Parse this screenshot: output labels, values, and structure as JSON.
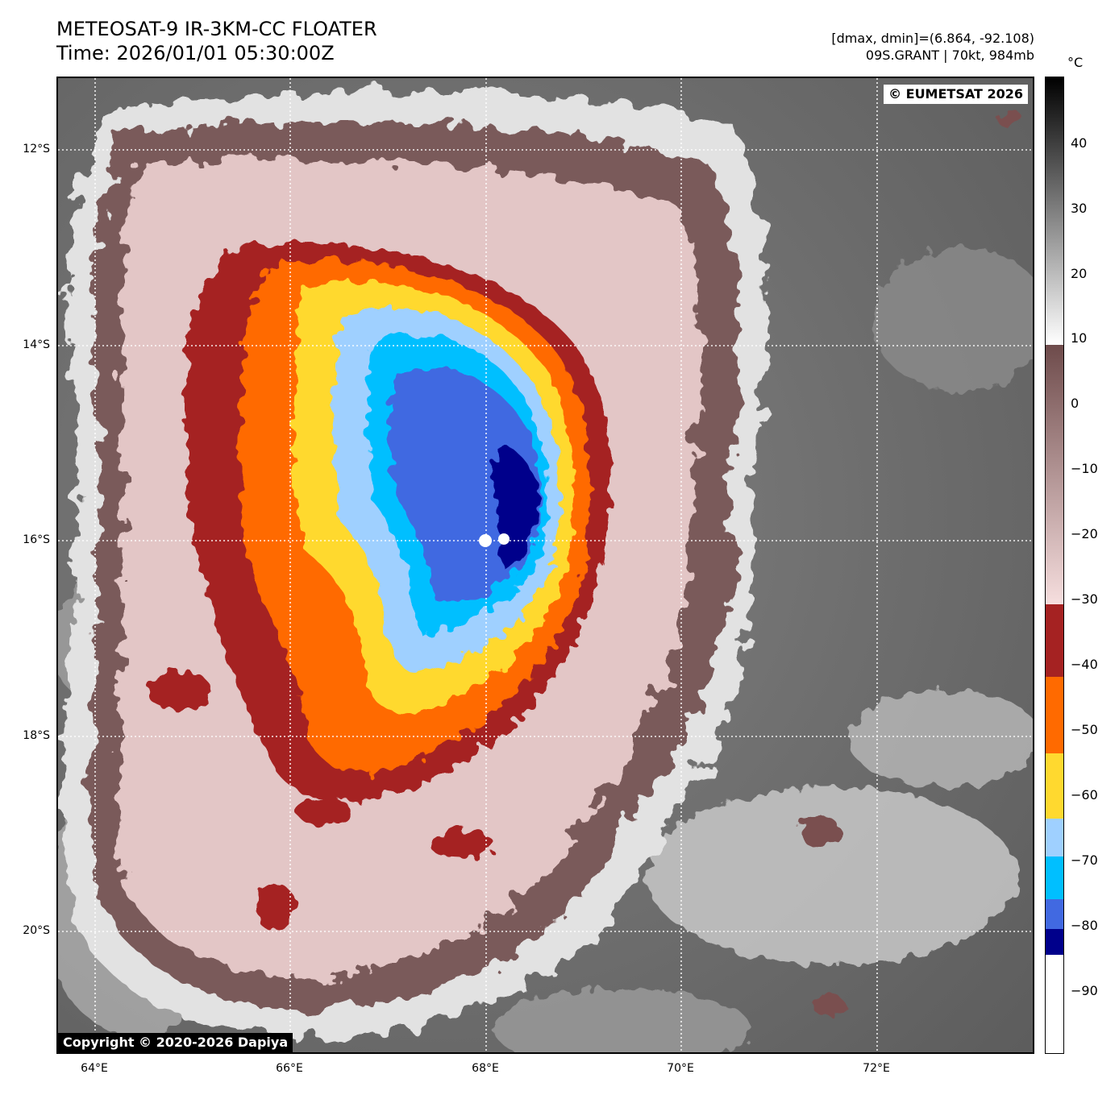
{
  "header": {
    "title": "METEOSAT-9 IR-3KM-CC FLOATER",
    "time": "Time: 2026/01/01 05:30:00Z",
    "range": "[dmax, dmin]=(6.864, -92.108)",
    "storm": "09S.GRANT | 70kt, 984mb"
  },
  "map": {
    "watermark": "© EUMETSAT 2026",
    "copyright": "Copyright © 2020-2026 Dapiya",
    "lat_labels": [
      "12°S",
      "14°S",
      "16°S",
      "18°S",
      "20°S"
    ],
    "lon_labels": [
      "64°E",
      "66°E",
      "68°E",
      "70°E",
      "72°E"
    ]
  },
  "colorbar": {
    "unit": "°C",
    "ticks": [
      "40",
      "30",
      "20",
      "10",
      "0",
      "−10",
      "−20",
      "−30",
      "−40",
      "−50",
      "−60",
      "−70",
      "−80",
      "−90"
    ]
  }
}
